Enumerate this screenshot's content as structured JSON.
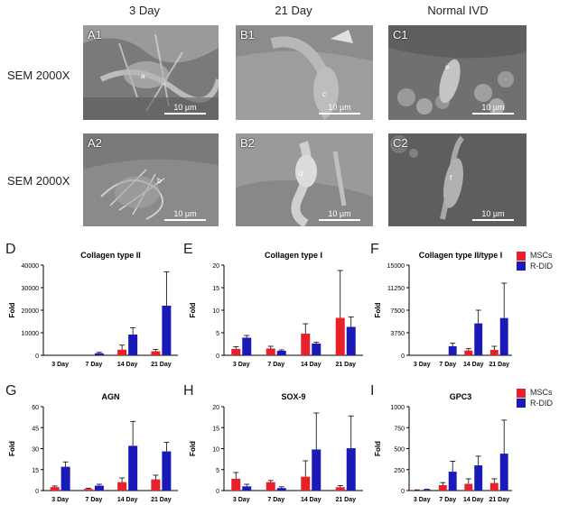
{
  "columns": [
    "3 Day",
    "21 Day",
    "Normal IVD"
  ],
  "rows": [
    "SEM 2000X",
    "SEM 2000X"
  ],
  "sem_panels": [
    {
      "tag": "A1",
      "cell": "a",
      "scale": "10 µm"
    },
    {
      "tag": "B1",
      "cell": "c",
      "scale": "10 µm"
    },
    {
      "tag": "C1",
      "cell": "e",
      "scale": "10 µm"
    },
    {
      "tag": "A2",
      "cell": "b",
      "scale": "10 µm"
    },
    {
      "tag": "B2",
      "cell": "d",
      "scale": "10 µm"
    },
    {
      "tag": "C2",
      "cell": "f",
      "scale": "10 µm"
    }
  ],
  "legend": {
    "series": [
      "MSCs",
      "R-DID"
    ],
    "colors": [
      "#e8202a",
      "#1a1ab8"
    ]
  },
  "chart_data": [
    {
      "panel": "D",
      "type": "bar",
      "title": "Collagen type II",
      "ylabel": "Fold",
      "categories": [
        "3 Day",
        "7 Day",
        "14 Day",
        "21 Day"
      ],
      "ylim": [
        0,
        40000
      ],
      "yticks": [
        0,
        10000,
        20000,
        30000,
        40000
      ],
      "series": [
        {
          "name": "MSCs",
          "values": [
            0,
            0,
            2500,
            1800
          ],
          "errors": [
            0,
            0,
            2000,
            800
          ]
        },
        {
          "name": "R-DID",
          "values": [
            0,
            900,
            9200,
            22000
          ],
          "errors": [
            0,
            400,
            3000,
            15000
          ]
        }
      ]
    },
    {
      "panel": "E",
      "type": "bar",
      "title": "Collagen type I",
      "ylabel": "Fold",
      "categories": [
        "3 Day",
        "7 Day",
        "14 Day",
        "21 Day"
      ],
      "ylim": [
        0,
        20
      ],
      "yticks": [
        0,
        5,
        10,
        15,
        20
      ],
      "series": [
        {
          "name": "MSCs",
          "values": [
            1.4,
            1.5,
            4.8,
            8.3
          ],
          "errors": [
            0.5,
            0.5,
            2.2,
            10.5
          ]
        },
        {
          "name": "R-DID",
          "values": [
            3.9,
            1.0,
            2.6,
            6.3
          ],
          "errors": [
            0.5,
            0.2,
            0.3,
            2.2
          ]
        }
      ]
    },
    {
      "panel": "F",
      "type": "bar",
      "title": "Collagen type II/type I",
      "ylabel": "Fold",
      "categories": [
        "3 Day",
        "7 Day",
        "14 Day",
        "21 Day"
      ],
      "ylim": [
        0,
        15000
      ],
      "yticks": [
        0,
        3750,
        7500,
        11250,
        15000
      ],
      "series": [
        {
          "name": "MSCs",
          "values": [
            0,
            0,
            800,
            900
          ],
          "errors": [
            0,
            0,
            300,
            600
          ]
        },
        {
          "name": "R-DID",
          "values": [
            0,
            1500,
            5300,
            6200
          ],
          "errors": [
            0,
            500,
            2200,
            5800
          ]
        }
      ]
    },
    {
      "panel": "G",
      "type": "bar",
      "title": "AGN",
      "ylabel": "Fold",
      "categories": [
        "3 Day",
        "7 Day",
        "14 Day",
        "21 Day"
      ],
      "ylim": [
        0,
        60
      ],
      "yticks": [
        0,
        15,
        30,
        45,
        60
      ],
      "series": [
        {
          "name": "MSCs",
          "values": [
            2.5,
            1.2,
            6,
            8
          ],
          "errors": [
            0.8,
            0.5,
            3,
            3
          ]
        },
        {
          "name": "R-DID",
          "values": [
            17,
            3.5,
            32,
            28
          ],
          "errors": [
            3.5,
            1,
            17.5,
            6.5
          ]
        }
      ]
    },
    {
      "panel": "H",
      "type": "bar",
      "title": "SOX-9",
      "ylabel": "Fold",
      "categories": [
        "3 Day",
        "7 Day",
        "14 Day",
        "21 Day"
      ],
      "ylim": [
        0,
        20
      ],
      "yticks": [
        0,
        5,
        10,
        15,
        20
      ],
      "series": [
        {
          "name": "MSCs",
          "values": [
            2.8,
            2.0,
            3.3,
            0.8
          ],
          "errors": [
            1.5,
            0.4,
            3.8,
            0.4
          ]
        },
        {
          "name": "R-DID",
          "values": [
            1.0,
            0.6,
            9.8,
            10.1
          ],
          "errors": [
            0.5,
            0.3,
            8.7,
            7.7
          ]
        }
      ]
    },
    {
      "panel": "I",
      "type": "bar",
      "title": "GPC3",
      "ylabel": "Fold",
      "categories": [
        "3 Day",
        "7 Day",
        "14 Day",
        "21 Day"
      ],
      "ylim": [
        0,
        1000
      ],
      "yticks": [
        0,
        250,
        500,
        750,
        1000
      ],
      "series": [
        {
          "name": "MSCs",
          "values": [
            5,
            65,
            80,
            90
          ],
          "errors": [
            3,
            30,
            60,
            50
          ]
        },
        {
          "name": "R-DID",
          "values": [
            10,
            225,
            300,
            440
          ],
          "errors": [
            5,
            125,
            110,
            400
          ]
        }
      ]
    }
  ]
}
